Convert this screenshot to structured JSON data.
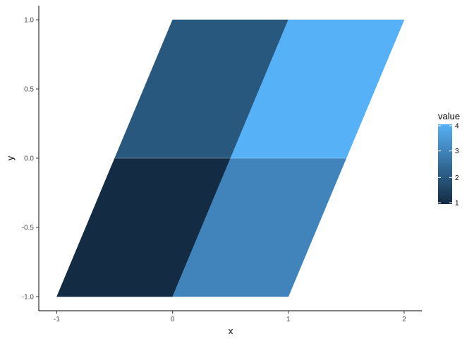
{
  "chart_data": {
    "type": "heatmap",
    "title": "",
    "xlabel": "x",
    "ylabel": "y",
    "xlim": [
      -1,
      2
    ],
    "ylim": [
      -1,
      1
    ],
    "x_ticks": [
      -1,
      0,
      1,
      2
    ],
    "y_ticks": [
      -1.0,
      -0.5,
      0.0,
      0.5,
      1.0
    ],
    "x_tick_labels": [
      "-1",
      "0",
      "1",
      "2"
    ],
    "y_tick_labels": [
      "-1.0",
      "-0.5",
      "0.0",
      "0.5",
      "1.0"
    ],
    "grid": false,
    "cells": [
      {
        "corners": [
          [
            -1,
            -1
          ],
          [
            0,
            -1
          ],
          [
            0.5,
            0
          ],
          [
            -0.5,
            0
          ]
        ],
        "value": 1
      },
      {
        "corners": [
          [
            -0.5,
            0
          ],
          [
            0.5,
            0
          ],
          [
            1,
            1
          ],
          [
            0,
            1
          ]
        ],
        "value": 2
      },
      {
        "corners": [
          [
            0,
            -1
          ],
          [
            1,
            -1
          ],
          [
            1.5,
            0
          ],
          [
            0.5,
            0
          ]
        ],
        "value": 3
      },
      {
        "corners": [
          [
            0.5,
            0
          ],
          [
            1.5,
            0
          ],
          [
            2,
            1
          ],
          [
            1,
            1
          ]
        ],
        "value": 4
      }
    ],
    "legend": {
      "title": "value",
      "placement": "right",
      "range": [
        1,
        4
      ],
      "breaks": [
        1,
        2,
        3,
        4
      ],
      "labels": [
        "1",
        "2",
        "3",
        "4"
      ],
      "low_color": "#132B43",
      "high_color": "#56B1F7"
    }
  }
}
